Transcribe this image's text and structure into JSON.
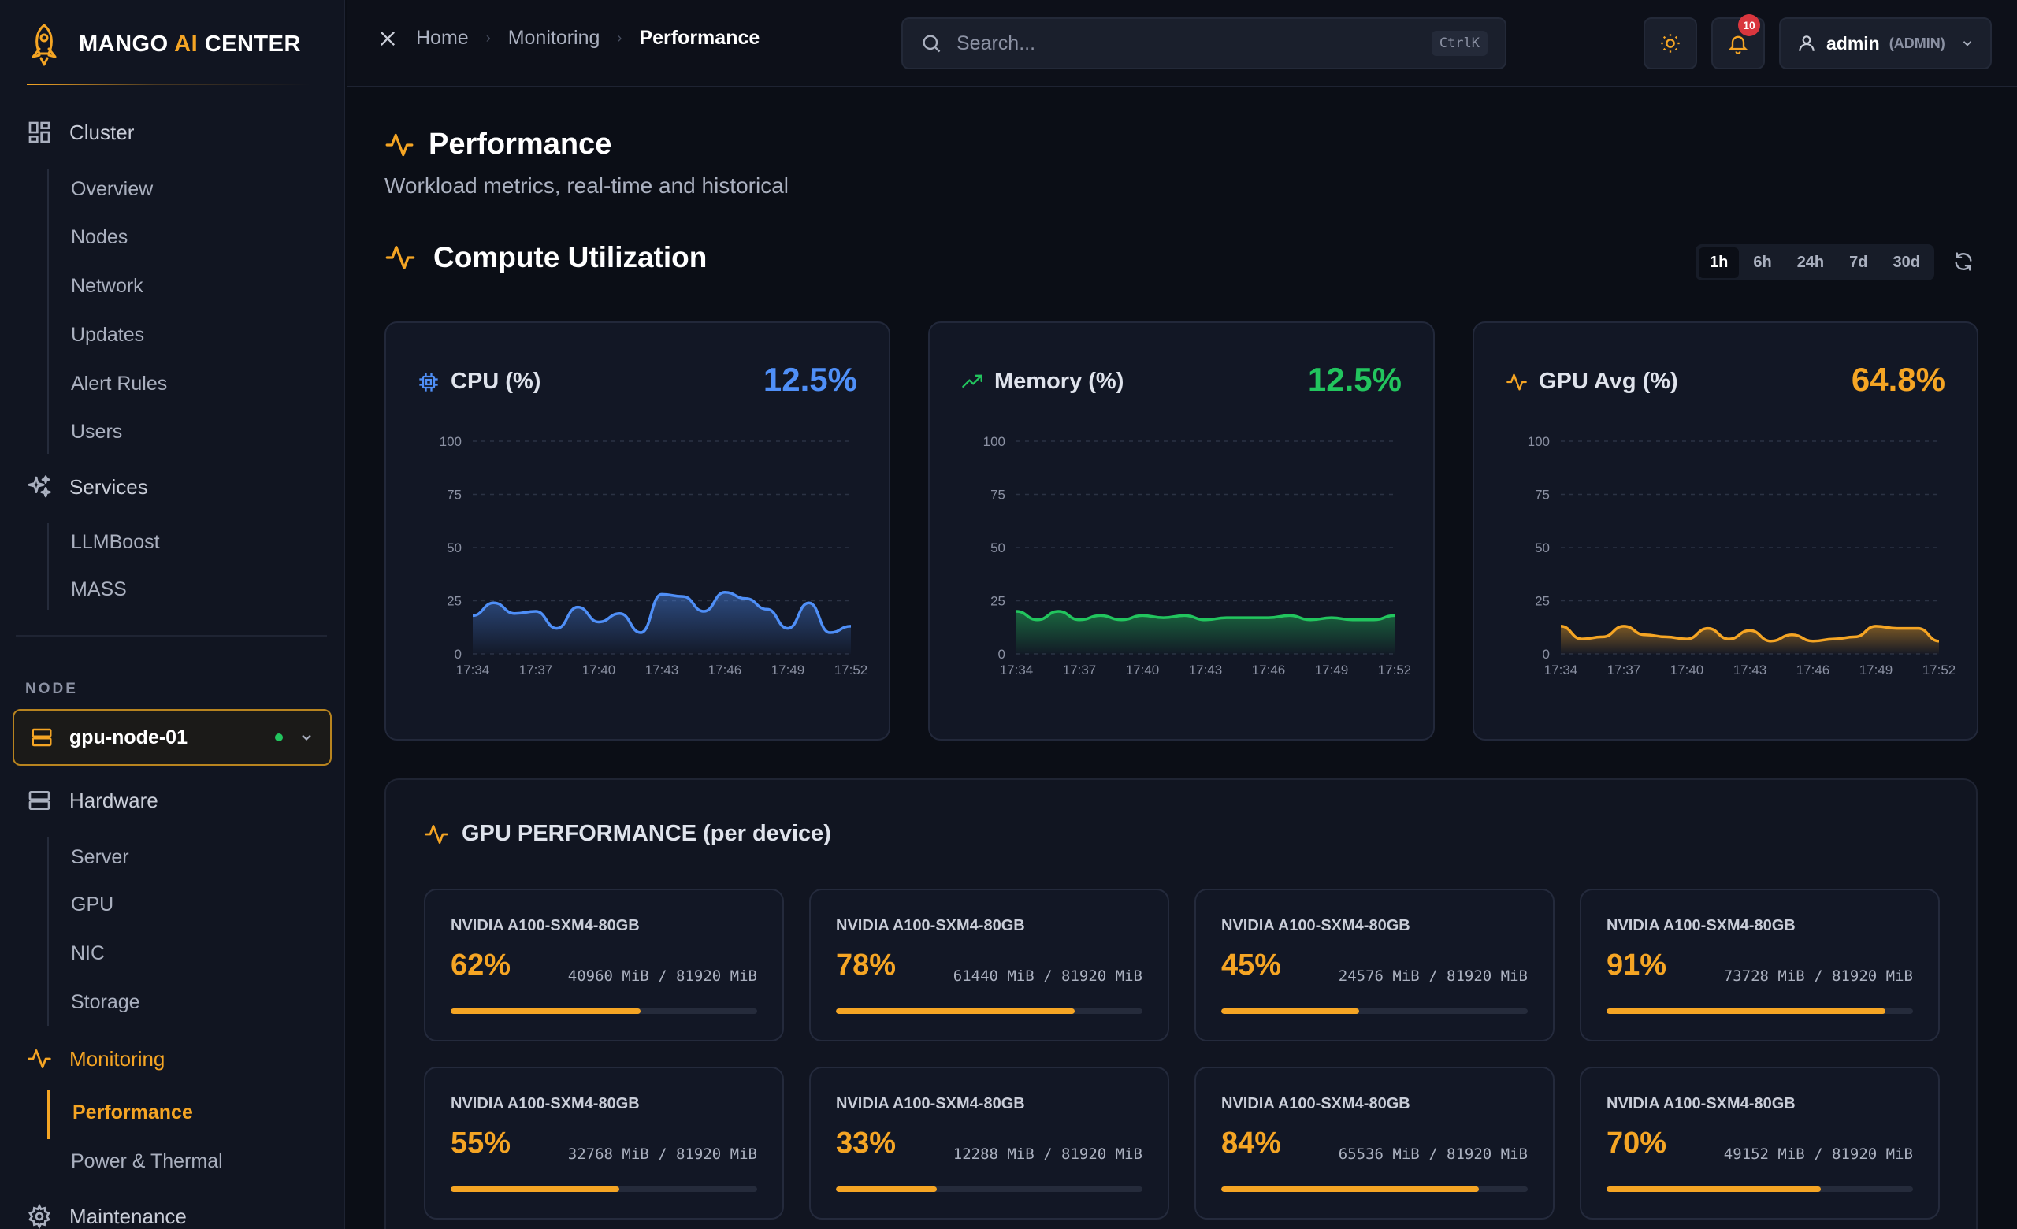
{
  "app": {
    "brand_main": "MANGO ",
    "brand_ai": "AI",
    "brand_rest": " CENTER"
  },
  "sidebar": {
    "groups": [
      {
        "label": "Cluster",
        "icon": "grid-icon",
        "items": [
          "Overview",
          "Nodes",
          "Network",
          "Updates",
          "Alert Rules",
          "Users"
        ]
      },
      {
        "label": "Services",
        "icon": "sparkles-icon",
        "items": [
          "LLMBoost",
          "MASS"
        ]
      }
    ],
    "node_section_label": "NODE",
    "node_selected": "gpu-node-01",
    "node_groups": [
      {
        "label": "Hardware",
        "icon": "server-icon",
        "items": [
          "Server",
          "GPU",
          "NIC",
          "Storage"
        ]
      },
      {
        "label": "Monitoring",
        "icon": "activity-icon",
        "items": [
          "Performance",
          "Power & Thermal"
        ],
        "active_item": "Performance"
      },
      {
        "label": "Maintenance",
        "icon": "gear-icon",
        "items": []
      }
    ]
  },
  "header": {
    "breadcrumbs": [
      "Home",
      "Monitoring",
      "Performance"
    ],
    "search_placeholder": "Search...",
    "search_shortcut": "CtrlK",
    "notifications_count": "10",
    "user_name": "admin",
    "user_role": "(ADMIN)"
  },
  "page": {
    "title": "Performance",
    "subtitle": "Workload metrics, real-time and historical",
    "section_title": "Compute Utilization",
    "time_ranges": [
      "1h",
      "6h",
      "24h",
      "7d",
      "30d"
    ],
    "selected_range": "1h"
  },
  "metrics": [
    {
      "label": "CPU (%)",
      "value": "12.5%",
      "color": "#4f8ff7",
      "icon": "cpu-icon"
    },
    {
      "label": "Memory (%)",
      "value": "12.5%",
      "color": "#22c55e",
      "icon": "trending-up-icon"
    },
    {
      "label": "GPU Avg (%)",
      "value": "64.8%",
      "color": "#f5a524",
      "icon": "activity-icon"
    }
  ],
  "chart_data": [
    {
      "type": "area",
      "title": "CPU (%)",
      "x": [
        "17:34",
        "17:35",
        "17:36",
        "17:37",
        "17:38",
        "17:39",
        "17:40",
        "17:41",
        "17:42",
        "17:43",
        "17:44",
        "17:45",
        "17:46",
        "17:47",
        "17:48",
        "17:49",
        "17:50",
        "17:51",
        "17:52"
      ],
      "x_ticks": [
        "17:34",
        "17:37",
        "17:40",
        "17:43",
        "17:46",
        "17:49",
        "17:52"
      ],
      "y_ticks": [
        0,
        25,
        50,
        75,
        100
      ],
      "ylim": [
        0,
        100
      ],
      "series": [
        {
          "values": [
            18,
            24,
            19,
            20,
            12,
            22,
            15,
            19,
            10,
            28,
            27,
            20,
            29,
            26,
            21,
            12,
            24,
            10,
            13
          ]
        }
      ]
    },
    {
      "type": "area",
      "title": "Memory (%)",
      "x": [
        "17:34",
        "17:35",
        "17:36",
        "17:37",
        "17:38",
        "17:39",
        "17:40",
        "17:41",
        "17:42",
        "17:43",
        "17:44",
        "17:45",
        "17:46",
        "17:47",
        "17:48",
        "17:49",
        "17:50",
        "17:51",
        "17:52"
      ],
      "x_ticks": [
        "17:34",
        "17:37",
        "17:40",
        "17:43",
        "17:46",
        "17:49",
        "17:52"
      ],
      "y_ticks": [
        0,
        25,
        50,
        75,
        100
      ],
      "ylim": [
        0,
        100
      ],
      "series": [
        {
          "values": [
            20,
            16,
            20,
            16,
            18,
            16,
            18,
            17,
            18,
            16,
            17,
            17,
            17,
            18,
            16,
            17,
            16,
            16,
            18
          ]
        }
      ]
    },
    {
      "type": "area",
      "title": "GPU Avg (%)",
      "x": [
        "17:34",
        "17:35",
        "17:36",
        "17:37",
        "17:38",
        "17:39",
        "17:40",
        "17:41",
        "17:42",
        "17:43",
        "17:44",
        "17:45",
        "17:46",
        "17:47",
        "17:48",
        "17:49",
        "17:50",
        "17:51",
        "17:52"
      ],
      "x_ticks": [
        "17:34",
        "17:37",
        "17:40",
        "17:43",
        "17:46",
        "17:49",
        "17:52"
      ],
      "y_ticks": [
        0,
        25,
        50,
        75,
        100
      ],
      "ylim": [
        0,
        100
      ],
      "series": [
        {
          "values": [
            13,
            7,
            8,
            13,
            9,
            8,
            7,
            12,
            7,
            11,
            6,
            9,
            6,
            7,
            8,
            13,
            12,
            12,
            6
          ]
        }
      ]
    }
  ],
  "gpu_panel": {
    "title": "GPU PERFORMANCE (per device)",
    "devices": [
      {
        "name": "NVIDIA A100-SXM4-80GB",
        "util": "62%",
        "util_fraction": 0.62,
        "mem": "40960 MiB / 81920 MiB"
      },
      {
        "name": "NVIDIA A100-SXM4-80GB",
        "util": "78%",
        "util_fraction": 0.78,
        "mem": "61440 MiB / 81920 MiB"
      },
      {
        "name": "NVIDIA A100-SXM4-80GB",
        "util": "45%",
        "util_fraction": 0.45,
        "mem": "24576 MiB / 81920 MiB"
      },
      {
        "name": "NVIDIA A100-SXM4-80GB",
        "util": "91%",
        "util_fraction": 0.91,
        "mem": "73728 MiB / 81920 MiB"
      },
      {
        "name": "NVIDIA A100-SXM4-80GB",
        "util": "55%",
        "util_fraction": 0.55,
        "mem": "32768 MiB / 81920 MiB"
      },
      {
        "name": "NVIDIA A100-SXM4-80GB",
        "util": "33%",
        "util_fraction": 0.33,
        "mem": "12288 MiB / 81920 MiB"
      },
      {
        "name": "NVIDIA A100-SXM4-80GB",
        "util": "84%",
        "util_fraction": 0.84,
        "mem": "65536 MiB / 81920 MiB"
      },
      {
        "name": "NVIDIA A100-SXM4-80GB",
        "util": "70%",
        "util_fraction": 0.7,
        "mem": "49152 MiB / 81920 MiB"
      }
    ]
  }
}
